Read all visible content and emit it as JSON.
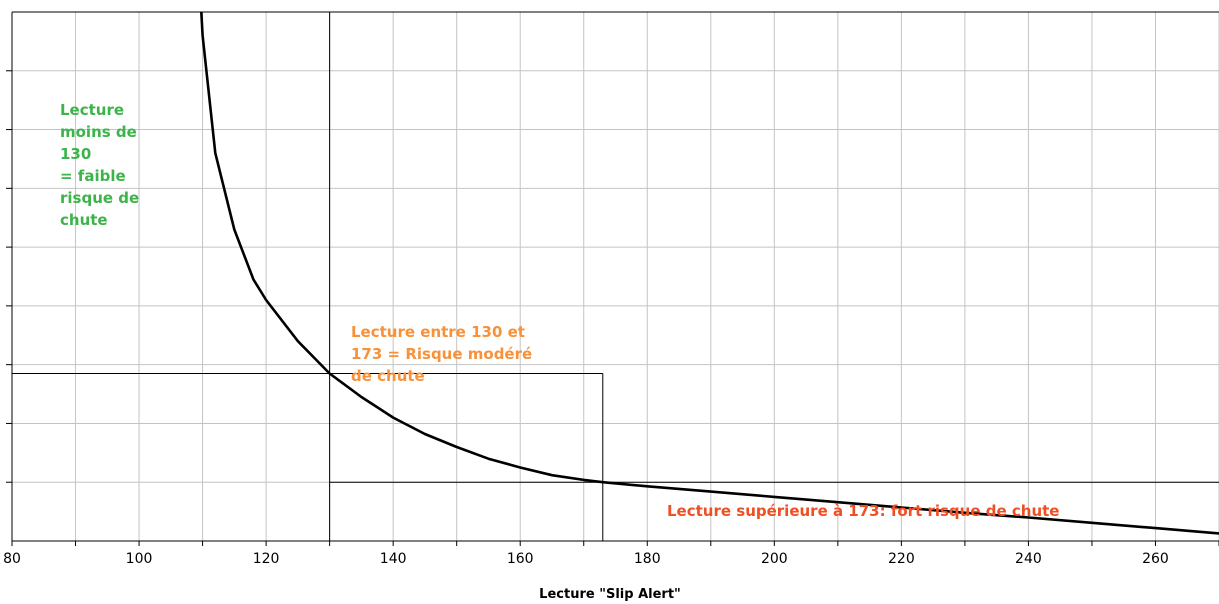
{
  "chart_data": {
    "type": "line",
    "xlabel": "Lecture \"Slip Alert\"",
    "ylabel": "",
    "xlim": [
      80,
      270
    ],
    "x_ticks": [
      "80",
      "100",
      "120",
      "140",
      "160",
      "180",
      "200",
      "220",
      "240",
      "260"
    ],
    "ylim": [
      0,
      9
    ],
    "grid": true,
    "series": [
      {
        "x": [
          109.8,
          110,
          112,
          115,
          118,
          120,
          125,
          130,
          135,
          140,
          145,
          150,
          155,
          160,
          165,
          170,
          173,
          180,
          190,
          200,
          210,
          220,
          230,
          240,
          250,
          260,
          270
        ],
        "y": [
          9.0,
          8.6,
          6.6,
          5.3,
          4.45,
          4.1,
          3.4,
          2.85,
          2.45,
          2.1,
          1.82,
          1.6,
          1.4,
          1.25,
          1.12,
          1.04,
          1.0,
          0.93,
          0.84,
          0.75,
          0.66,
          0.57,
          0.48,
          0.4,
          0.31,
          0.22,
          0.13
        ]
      }
    ],
    "threshold_lines": [
      {
        "axis": "x",
        "value": 130,
        "from_y": 0,
        "to_y": 9
      },
      {
        "axis": "y",
        "value": 2.85,
        "from_x": 80,
        "to_x": 173
      },
      {
        "axis": "x",
        "value": 173,
        "from_y": 0,
        "to_y": 2.85
      },
      {
        "axis": "y",
        "value": 1.0,
        "from_x": 130,
        "to_x": 270
      }
    ],
    "annotations": [
      {
        "id": "low",
        "lines": [
          "Lecture",
          "moins de 130",
          "= faible",
          "risque de",
          "chute"
        ],
        "color": "#3cb44b"
      },
      {
        "id": "mod",
        "lines": [
          "Lecture entre 130 et",
          "173 = Risque modéré",
          "de chute"
        ],
        "color": "#f7913a"
      },
      {
        "id": "high",
        "lines": [
          "Lecture supérieure à 173: fort risque de chute"
        ],
        "color": "#f04e23"
      }
    ]
  }
}
